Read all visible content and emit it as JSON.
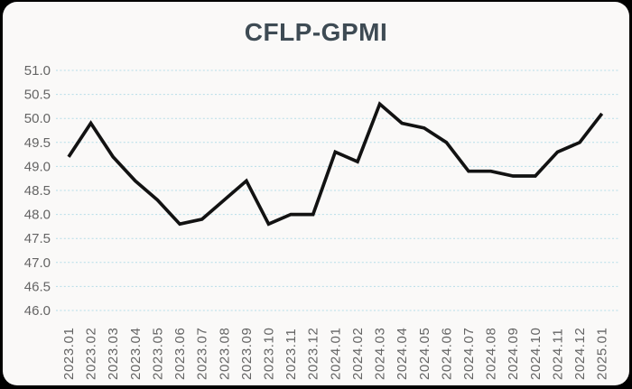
{
  "window": {
    "background_color": "#000000",
    "card_background_color": "#faf9f8"
  },
  "chart_data": {
    "type": "line",
    "title": "CFLP-GPMI",
    "categories": [
      "2023.01",
      "2023.02",
      "2023.03",
      "2023.04",
      "2023.05",
      "2023.06",
      "2023.07",
      "2023.08",
      "2023.09",
      "2023.10",
      "2023.11",
      "2023.12",
      "2024.01",
      "2024.02",
      "2024.03",
      "2024.04",
      "2024.05",
      "2024.06",
      "2024.07",
      "2024.08",
      "2024.09",
      "2024.10",
      "2024.11",
      "2024.12",
      "2025.01"
    ],
    "values": [
      49.2,
      49.9,
      49.2,
      48.7,
      48.3,
      47.8,
      47.9,
      48.3,
      48.7,
      47.8,
      48.0,
      48.0,
      49.3,
      49.1,
      50.3,
      49.9,
      49.8,
      49.5,
      48.9,
      48.9,
      48.8,
      48.8,
      49.3,
      49.5,
      50.1
    ],
    "xlabel": "",
    "ylabel": "",
    "ylim": [
      46.0,
      51.0
    ],
    "ytick_step": 0.5,
    "yticks": [
      "51.0",
      "50.5",
      "50.0",
      "49.5",
      "49.0",
      "48.5",
      "48.0",
      "47.5",
      "47.0",
      "46.5",
      "46.0"
    ],
    "grid": "horizontal-dashed",
    "legend": "none",
    "line_color": "#121212",
    "grid_color": "#b5dde8",
    "title_color": "#3e4b54",
    "tick_label_color": "#646464"
  }
}
